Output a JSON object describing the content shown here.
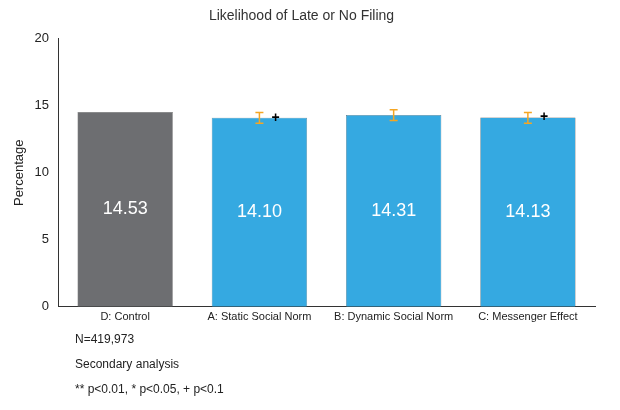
{
  "chart_data": {
    "type": "bar",
    "title": "Likelihood of Late or No Filing",
    "y_label": "Percentage",
    "categories": [
      "D: Control",
      "A: Static Social Norm",
      "B: Dynamic Social Norm",
      "C: Messenger Effect"
    ],
    "values": [
      14.53,
      14.1,
      14.31,
      14.13
    ],
    "value_labels": [
      "14.53",
      "14.10",
      "14.31",
      "14.13"
    ],
    "colors": [
      "#6d6e71",
      "#35a9e1",
      "#35a9e1",
      "#35a9e1"
    ],
    "error_low": [
      null,
      13.7,
      13.9,
      13.7
    ],
    "error_high": [
      null,
      14.5,
      14.7,
      14.5
    ],
    "error_color": "#f5a623",
    "significance": [
      null,
      "+",
      null,
      "+"
    ],
    "notes": [
      "N=419,973",
      "Secondary analysis",
      "** p<0.01, * p<0.05, + p<0.1"
    ],
    "ylim": [
      0,
      20
    ],
    "yticks": [
      0,
      5,
      10,
      15,
      20
    ],
    "grid": false,
    "data_labels": true
  }
}
